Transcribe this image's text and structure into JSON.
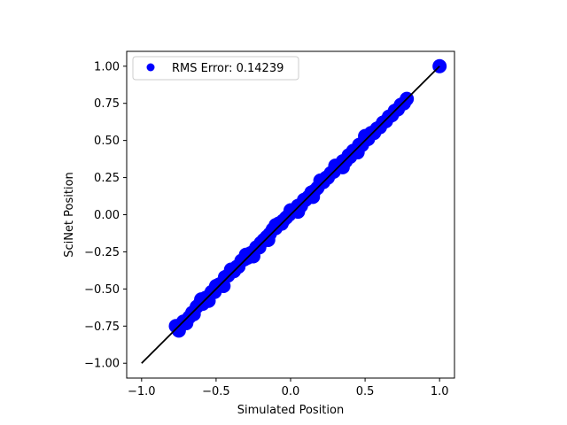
{
  "chart_data": {
    "type": "scatter",
    "title": "",
    "xlabel": "Simulated Position",
    "ylabel": "SciNet Position",
    "xlim": [
      -1.1,
      1.1
    ],
    "ylim": [
      -1.1,
      1.1
    ],
    "xticks": [
      -1.0,
      -0.5,
      0.0,
      0.5,
      1.0
    ],
    "xtick_labels": [
      "−1.0",
      "−0.5",
      "0.0",
      "0.5",
      "1.0"
    ],
    "yticks": [
      -1.0,
      -0.75,
      -0.5,
      -0.25,
      0.0,
      0.25,
      0.5,
      0.75,
      1.0
    ],
    "ytick_labels": [
      "−1.00",
      "−0.75",
      "−0.50",
      "−0.25",
      "0.00",
      "0.25",
      "0.50",
      "0.75",
      "1.00"
    ],
    "grid": false,
    "legend_position": "upper-left",
    "series": [
      {
        "name": "RMS Error: 0.14239",
        "kind": "scatter",
        "color": "#0000ff",
        "x": [
          -0.77,
          -0.75,
          -0.73,
          -0.72,
          -0.7,
          -0.68,
          -0.66,
          -0.65,
          -0.63,
          -0.61,
          -0.59,
          -0.57,
          -0.55,
          -0.53,
          -0.51,
          -0.5,
          -0.48,
          -0.46,
          -0.44,
          -0.42,
          -0.4,
          -0.38,
          -0.36,
          -0.35,
          -0.33,
          -0.31,
          -0.29,
          -0.27,
          -0.25,
          -0.23,
          -0.21,
          -0.2,
          -0.18,
          -0.16,
          -0.14,
          -0.12,
          -0.1,
          -0.08,
          -0.06,
          -0.05,
          -0.03,
          -0.01,
          0.01,
          0.03,
          0.05,
          0.07,
          0.09,
          0.1,
          0.12,
          0.14,
          0.16,
          0.18,
          0.2,
          0.22,
          0.24,
          0.25,
          0.27,
          0.29,
          0.31,
          0.33,
          0.35,
          0.37,
          0.39,
          0.4,
          0.42,
          0.44,
          0.46,
          0.48,
          0.5,
          0.52,
          0.54,
          0.56,
          0.58,
          0.6,
          0.62,
          0.64,
          0.66,
          0.68,
          0.7,
          0.72,
          0.74,
          0.76,
          0.78,
          1.0,
          -0.6,
          -0.45,
          -0.3,
          -0.15,
          0.0,
          0.15,
          0.3,
          0.45,
          -0.55,
          -0.4,
          -0.25,
          -0.1,
          0.05,
          0.2,
          0.35,
          0.5
        ],
        "y": [
          -0.75,
          -0.78,
          -0.74,
          -0.72,
          -0.73,
          -0.69,
          -0.66,
          -0.67,
          -0.62,
          -0.6,
          -0.6,
          -0.56,
          -0.55,
          -0.52,
          -0.52,
          -0.48,
          -0.47,
          -0.46,
          -0.42,
          -0.41,
          -0.38,
          -0.38,
          -0.35,
          -0.35,
          -0.31,
          -0.3,
          -0.29,
          -0.26,
          -0.25,
          -0.22,
          -0.22,
          -0.19,
          -0.17,
          -0.15,
          -0.13,
          -0.1,
          -0.09,
          -0.06,
          -0.06,
          -0.04,
          -0.02,
          0.0,
          0.02,
          0.03,
          0.06,
          0.06,
          0.1,
          0.1,
          0.12,
          0.15,
          0.16,
          0.18,
          0.21,
          0.22,
          0.25,
          0.25,
          0.28,
          0.29,
          0.32,
          0.33,
          0.36,
          0.36,
          0.4,
          0.39,
          0.43,
          0.43,
          0.47,
          0.47,
          0.51,
          0.51,
          0.55,
          0.55,
          0.58,
          0.59,
          0.62,
          0.63,
          0.66,
          0.67,
          0.7,
          0.71,
          0.74,
          0.75,
          0.78,
          1.0,
          -0.57,
          -0.48,
          -0.27,
          -0.17,
          0.03,
          0.12,
          0.33,
          0.42,
          -0.58,
          -0.37,
          -0.28,
          -0.07,
          0.02,
          0.23,
          0.32,
          0.53
        ]
      },
      {
        "name": "",
        "kind": "line",
        "color": "#000000",
        "x": [
          -1.0,
          1.0
        ],
        "y": [
          -1.0,
          1.0
        ]
      }
    ]
  }
}
